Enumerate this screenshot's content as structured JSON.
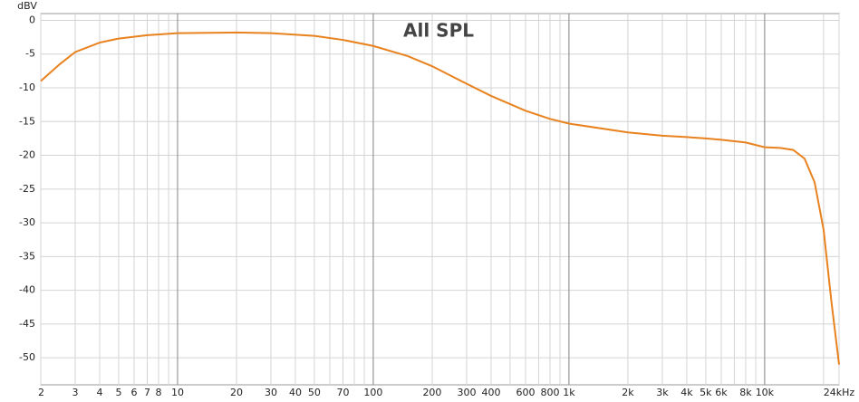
{
  "chart_data": {
    "type": "line",
    "title": "All SPL",
    "y_label": "dBV",
    "xscale": "log",
    "xlim": [
      2,
      24000
    ],
    "ylim": [
      -54,
      1
    ],
    "xticks": [
      2,
      3,
      4,
      5,
      6,
      7,
      8,
      10,
      20,
      30,
      40,
      50,
      70,
      100,
      200,
      300,
      400,
      600,
      800,
      {
        "value": 1000,
        "label": "1k"
      },
      {
        "value": 2000,
        "label": "2k"
      },
      {
        "value": 3000,
        "label": "3k"
      },
      {
        "value": 4000,
        "label": "4k"
      },
      {
        "value": 5000,
        "label": "5k"
      },
      {
        "value": 6000,
        "label": "6k"
      },
      {
        "value": 8000,
        "label": "8k"
      },
      {
        "value": 10000,
        "label": "10k"
      },
      {
        "value": 24000,
        "label": "24kHz"
      }
    ],
    "xminor_ticks": [
      9,
      60,
      80,
      90,
      500,
      700,
      900,
      7000,
      9000,
      20000
    ],
    "xmajor_ticks": [
      10,
      100,
      1000,
      10000
    ],
    "yticks": [
      0,
      -5,
      -10,
      -15,
      -20,
      -25,
      -30,
      -35,
      -40,
      -45,
      -50
    ],
    "grid": true,
    "series": [
      {
        "name": "All SPL",
        "color": "#e8821e",
        "x": [
          2,
          2.5,
          3,
          4,
          5,
          7,
          10,
          20,
          30,
          50,
          70,
          100,
          150,
          200,
          300,
          400,
          600,
          800,
          1000,
          2000,
          3000,
          4000,
          5000,
          6000,
          8000,
          10000,
          12000,
          14000,
          16000,
          18000,
          20000,
          22000,
          24000
        ],
        "values": [
          -9,
          -6.5,
          -4.7,
          -3.3,
          -2.7,
          -2.2,
          -1.9,
          -1.8,
          -1.9,
          -2.3,
          -2.9,
          -3.8,
          -5.3,
          -6.8,
          -9.4,
          -11.2,
          -13.4,
          -14.6,
          -15.3,
          -16.6,
          -17.1,
          -17.3,
          -17.5,
          -17.7,
          -18.1,
          -18.8,
          -18.9,
          -19.2,
          -20.5,
          -24,
          -31,
          -42,
          -51
        ]
      }
    ]
  }
}
